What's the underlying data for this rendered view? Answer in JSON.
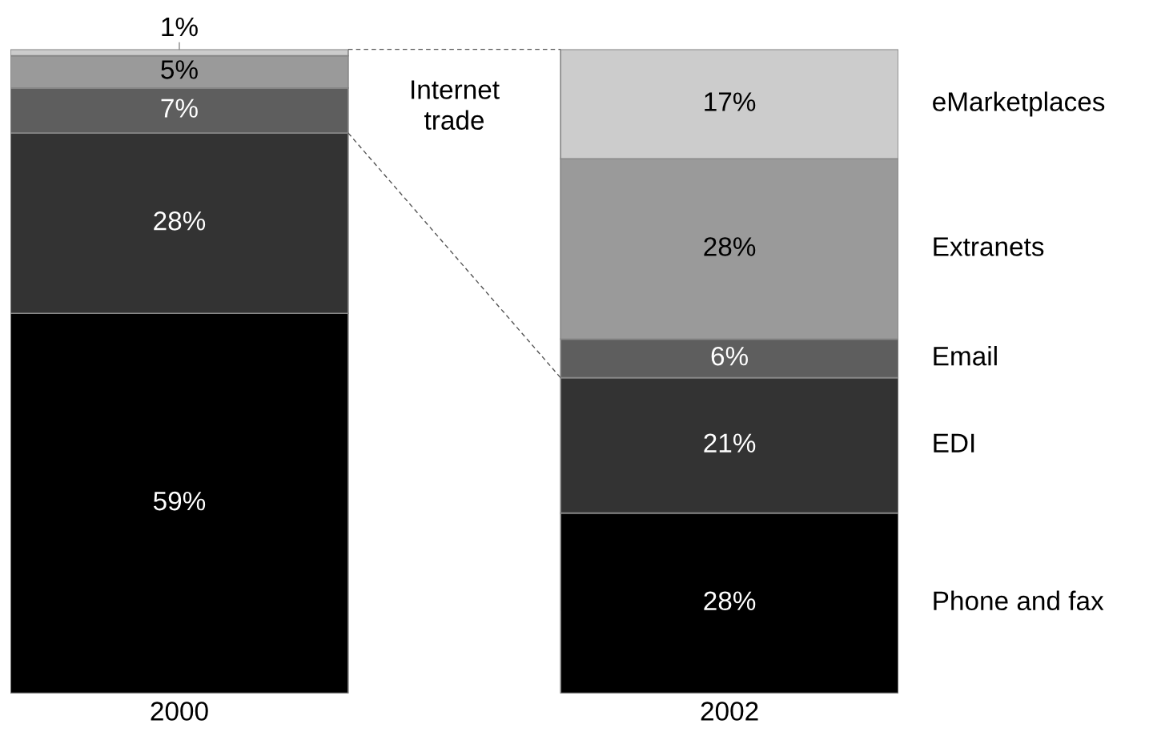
{
  "chart_data": {
    "type": "bar",
    "stacked": true,
    "categories": [
      "2000",
      "2002"
    ],
    "series": [
      {
        "name": "Phone and fax",
        "color": "#000000",
        "values": [
          59,
          28
        ],
        "value_labels": [
          "59%",
          "28%"
        ]
      },
      {
        "name": "EDI",
        "color": "#333333",
        "values": [
          28,
          21
        ],
        "value_labels": [
          "28%",
          "21%"
        ]
      },
      {
        "name": "Email",
        "color": "#5e5e5e",
        "values": [
          7,
          6
        ],
        "value_labels": [
          "7%",
          "6%"
        ]
      },
      {
        "name": "Extranets",
        "color": "#9a9a9a",
        "values": [
          5,
          28
        ],
        "value_labels": [
          "5%",
          "28%"
        ]
      },
      {
        "name": "eMarketplaces",
        "color": "#cccccc",
        "values": [
          1,
          17
        ],
        "value_labels": [
          "1%",
          "17%"
        ]
      }
    ],
    "annotations": [
      "Internet trade"
    ],
    "legend": false
  }
}
